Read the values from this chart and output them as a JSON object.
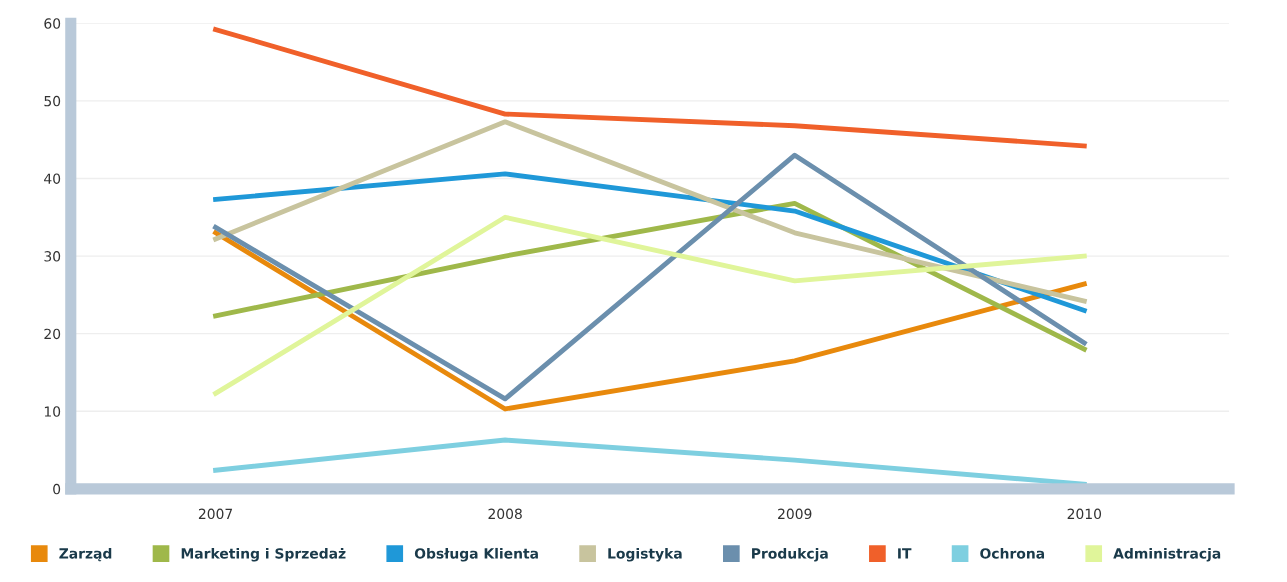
{
  "chart_data": {
    "type": "line",
    "categories": [
      "2007",
      "2008",
      "2009",
      "2010"
    ],
    "series": [
      {
        "name": "Zarząd",
        "color": "#e8890c",
        "values": [
          33,
          10.3,
          16.5,
          26.4
        ]
      },
      {
        "name": "Marketing i Sprzedaż",
        "color": "#9fb84a",
        "values": [
          22.3,
          30,
          36.8,
          18
        ]
      },
      {
        "name": "Obsługa Klienta",
        "color": "#1f98d8",
        "values": [
          37.3,
          40.6,
          35.8,
          23
        ]
      },
      {
        "name": "Logistyka",
        "color": "#c8c49e",
        "values": [
          32.2,
          47.3,
          33,
          24.2
        ]
      },
      {
        "name": "Produkcja",
        "color": "#6b8fad",
        "values": [
          33.7,
          11.6,
          43,
          18.8
        ]
      },
      {
        "name": "IT",
        "color": "#f0602a",
        "values": [
          59.2,
          48.3,
          46.8,
          44.2
        ]
      },
      {
        "name": "Ochrona",
        "color": "#7ecfe0",
        "values": [
          2.4,
          6.3,
          3.7,
          0.6
        ]
      },
      {
        "name": "Administracja",
        "color": "#e0f59a",
        "values": [
          12.3,
          35,
          26.8,
          30
        ]
      }
    ],
    "ylim": [
      0,
      60
    ],
    "yticks": [
      0,
      10,
      20,
      30,
      40,
      50,
      60
    ],
    "grid": "y",
    "legend": "bottom",
    "marker": "none",
    "line_style": "solid"
  }
}
